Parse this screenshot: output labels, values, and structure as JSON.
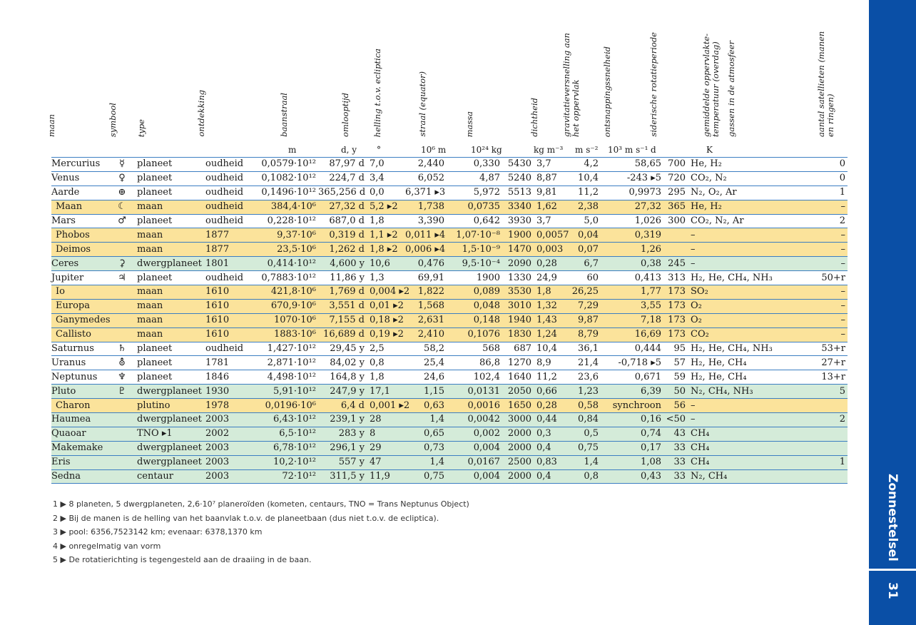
{
  "sidebar": {
    "chapter_title": "Zonnestelsel",
    "page_number": "31"
  },
  "headers": [
    "maan",
    "symbool",
    "type",
    "ontdekking",
    "baanstraal",
    "omlooptijd",
    "helling t.o.v. ecliptica",
    "straal (equator)",
    "massa",
    "dichtheid",
    "gravitatieversnelling aan het oppervlak",
    "ontsnappingssnelheid",
    "siderische rotatieperiode",
    "gemiddelde oppervlakte-temperatuur (overdag)",
    "gassen in de atmosfeer",
    "aantal satellieten (manen en ringen)"
  ],
  "units": [
    "m",
    "d, y",
    "°",
    "10⁶ m",
    "10²⁴ kg",
    "kg m⁻³",
    "m s⁻²",
    "10³ m s⁻¹",
    "d",
    "K"
  ],
  "rows": [
    {
      "kind": "planeet",
      "c": [
        "Mercurius",
        "☿",
        "planeet",
        "oudheid",
        "0,0579·10¹²",
        "87,97 d",
        "7,0",
        "2,440",
        "0,330",
        "5430",
        "3,7",
        "4,2",
        "58,65",
        "700",
        "He, H₂",
        "0"
      ]
    },
    {
      "kind": "planeet",
      "c": [
        "Venus",
        "♀",
        "planeet",
        "oudheid",
        "0,1082·10¹²",
        "224,7 d",
        "3,4",
        "6,052",
        "4,87",
        "5240",
        "8,87",
        "10,4",
        "-243 ▸5",
        "720",
        "CO₂, N₂",
        "0"
      ]
    },
    {
      "kind": "planeet",
      "c": [
        "Aarde",
        "⊕",
        "planeet",
        "oudheid",
        "0,1496·10¹²",
        "365,256 d",
        "0,0",
        "6,371 ▸3",
        "5,972",
        "5513",
        "9,81",
        "11,2",
        "0,9973",
        "295",
        "N₂, O₂, Ar",
        "1"
      ]
    },
    {
      "kind": "moon",
      "c": [
        "Maan",
        "☾",
        "maan",
        "oudheid",
        "384,4·10⁶",
        "27,32 d",
        "5,2 ▸2",
        "1,738",
        "0,0735",
        "3340",
        "1,62",
        "2,38",
        "27,32",
        "365",
        "He, H₂",
        "–"
      ]
    },
    {
      "kind": "planeet",
      "c": [
        "Mars",
        "♂",
        "planeet",
        "oudheid",
        "0,228·10¹²",
        "687,0 d",
        "1,8",
        "3,390",
        "0,642",
        "3930",
        "3,7",
        "5,0",
        "1,026",
        "300",
        "CO₂, N₂, Ar",
        "2"
      ]
    },
    {
      "kind": "moon",
      "c": [
        "Phobos",
        "",
        "maan",
        "1877",
        "9,37·10⁶",
        "0,319 d",
        "1,1 ▸2",
        "0,011 ▸4",
        "1,07·10⁻⁸",
        "1900",
        "0,0057",
        "0,04",
        "0,319",
        "",
        "–",
        "–"
      ]
    },
    {
      "kind": "moon",
      "c": [
        "Deimos",
        "",
        "maan",
        "1877",
        "23,5·10⁶",
        "1,262 d",
        "1,8 ▸2",
        "0,006 ▸4",
        "1,5·10⁻⁹",
        "1470",
        "0,003",
        "0,07",
        "1,26",
        "",
        "–",
        "–"
      ]
    },
    {
      "kind": "dwarf",
      "c": [
        "Ceres",
        "⚳",
        "dwergplaneet",
        "1801",
        "0,414·10¹²",
        "4,600 y",
        "10,6",
        "0,476",
        "9,5·10⁻⁴",
        "2090",
        "0,28",
        "6,7",
        "0,38",
        "245",
        "–",
        "–"
      ]
    },
    {
      "kind": "planeet",
      "c": [
        "Jupiter",
        "♃",
        "planeet",
        "oudheid",
        "0,7883·10¹²",
        "11,86 y",
        "1,3",
        "69,91",
        "1900",
        "1330",
        "24,9",
        "60",
        "0,413",
        "313",
        "H₂, He, CH₄, NH₃",
        "50+r"
      ]
    },
    {
      "kind": "moon",
      "c": [
        "Io",
        "",
        "maan",
        "1610",
        "421,8·10⁶",
        "1,769 d",
        "0,004 ▸2",
        "1,822",
        "0,089",
        "3530",
        "1,8",
        "26,25",
        "1,77",
        "173",
        "SO₂",
        "–"
      ]
    },
    {
      "kind": "moon",
      "c": [
        "Europa",
        "",
        "maan",
        "1610",
        "670,9·10⁶",
        "3,551 d",
        "0,01 ▸2",
        "1,568",
        "0,048",
        "3010",
        "1,32",
        "7,29",
        "3,55",
        "173",
        "O₂",
        "–"
      ]
    },
    {
      "kind": "moon",
      "c": [
        "Ganymedes",
        "",
        "maan",
        "1610",
        "1070·10⁶",
        "7,155 d",
        "0,18 ▸2",
        "2,631",
        "0,148",
        "1940",
        "1,43",
        "9,87",
        "7,18",
        "173",
        "O₂",
        "–"
      ]
    },
    {
      "kind": "moon",
      "c": [
        "Callisto",
        "",
        "maan",
        "1610",
        "1883·10⁶",
        "16,689 d",
        "0,19 ▸2",
        "2,410",
        "0,1076",
        "1830",
        "1,24",
        "8,79",
        "16,69",
        "173",
        "CO₂",
        "–"
      ]
    },
    {
      "kind": "planeet",
      "c": [
        "Saturnus",
        "♄",
        "planeet",
        "oudheid",
        "1,427·10¹²",
        "29,45 y",
        "2,5",
        "58,2",
        "568",
        "687",
        "10,4",
        "36,1",
        "0,444",
        "95",
        "H₂, He, CH₄, NH₃",
        "53+r"
      ]
    },
    {
      "kind": "planeet",
      "c": [
        "Uranus",
        "⛢",
        "planeet",
        "1781",
        "2,871·10¹²",
        "84,02 y",
        "0,8",
        "25,4",
        "86,8",
        "1270",
        "8,9",
        "21,4",
        "-0,718 ▸5",
        "57",
        "H₂, He, CH₄",
        "27+r"
      ]
    },
    {
      "kind": "planeet",
      "c": [
        "Neptunus",
        "♆",
        "planeet",
        "1846",
        "4,498·10¹²",
        "164,8 y",
        "1,8",
        "24,6",
        "102,4",
        "1640",
        "11,2",
        "23,6",
        "0,671",
        "59",
        "H₂, He, CH₄",
        "13+r"
      ]
    },
    {
      "kind": "dwarf",
      "c": [
        "Pluto",
        "♇",
        "dwergplaneet",
        "1930",
        "5,91·10¹²",
        "247,9 y",
        "17,1",
        "1,15",
        "0,0131",
        "2050",
        "0,66",
        "1,23",
        "6,39",
        "50",
        "N₂, CH₄, NH₃",
        "5"
      ]
    },
    {
      "kind": "moon",
      "c": [
        "Charon",
        "",
        "plutino",
        "1978",
        "0,0196·10⁶",
        "6,4 d",
        "0,001 ▸2",
        "0,63",
        "0,0016",
        "1650",
        "0,28",
        "0,58",
        "synchroon",
        "56",
        "–",
        ""
      ]
    },
    {
      "kind": "dwarf",
      "c": [
        "Haumea",
        "",
        "dwergplaneet",
        "2003",
        "6,43·10¹²",
        "239,1 y",
        "28",
        "1,4",
        "0,0042",
        "3000",
        "0,44",
        "0,84",
        "0,16",
        "<50",
        "–",
        "2"
      ]
    },
    {
      "kind": "dwarf",
      "c": [
        "Quaoar",
        "",
        "TNO ▸1",
        "2002",
        "6,5·10¹²",
        "283 y",
        "8",
        "0,65",
        "0,002",
        "2000",
        "0,3",
        "0,5",
        "0,74",
        "43",
        "CH₄",
        ""
      ]
    },
    {
      "kind": "dwarf",
      "c": [
        "Makemake",
        "",
        "dwergplaneet",
        "2003",
        "6,78·10¹²",
        "296,1 y",
        "29",
        "0,73",
        "0,004",
        "2000",
        "0,4",
        "0,75",
        "0,17",
        "33",
        "CH₄",
        ""
      ]
    },
    {
      "kind": "dwarf",
      "c": [
        "Eris",
        "",
        "dwergplaneet",
        "2003",
        "10,2·10¹²",
        "557 y",
        "47",
        "1,4",
        "0,0167",
        "2500",
        "0,83",
        "1,4",
        "1,08",
        "33",
        "CH₄",
        "1"
      ]
    },
    {
      "kind": "dwarf",
      "c": [
        "Sedna",
        "",
        "centaur",
        "2003",
        "72·10¹²",
        "311,5 y",
        "11,9",
        "0,75",
        "0,004",
        "2000",
        "0,4",
        "0,8",
        "0,43",
        "33",
        "N₂, CH₄",
        ""
      ]
    }
  ],
  "footnotes": [
    "1 ▶ 8 planeten, 5 dwergplaneten, 2,6·10⁷ planeroïden (kometen, centaurs, TNO = Trans Neptunus Object)",
    "2 ▶ Bij de manen is de helling van het baanvlak t.o.v. de planeetbaan (dus niet t.o.v. de ecliptica).",
    "3 ▶ pool: 6356,7523142 km; evenaar: 6378,1370 km",
    "4 ▶ onregelmatig van vorm",
    "5 ▶ De rotatierichting is tegengesteld aan de draaiing in de baan."
  ],
  "colors": {
    "sidebar": "#0a4fa6",
    "moon_row": "#fbe39b",
    "dwarf_row": "#d4ebd9",
    "rule": "#3c7ec2"
  }
}
